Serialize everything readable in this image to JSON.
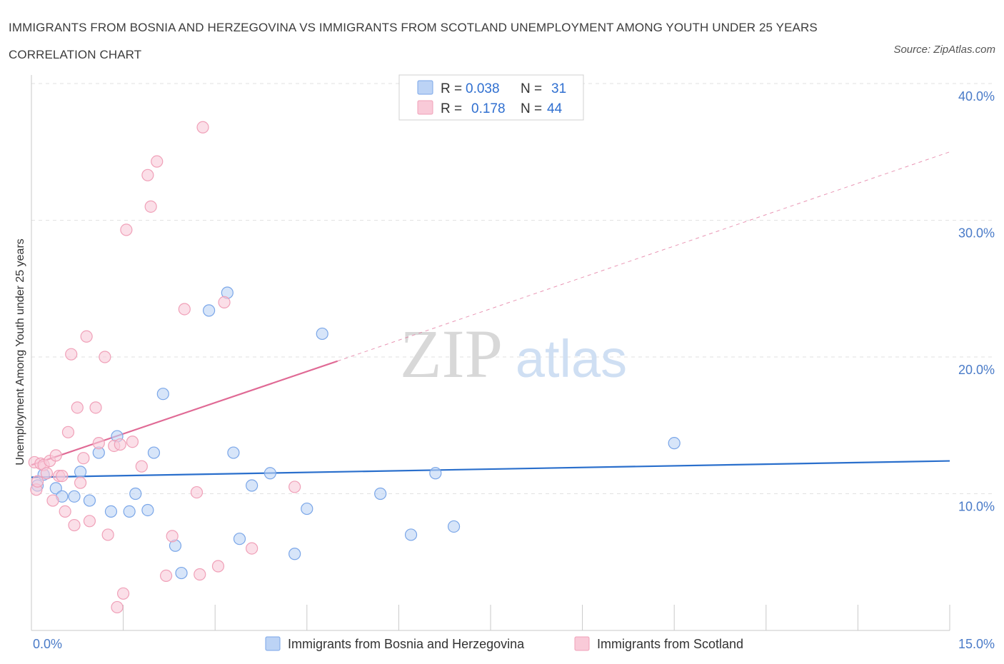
{
  "title": "IMMIGRANTS FROM BOSNIA AND HERZEGOVINA VS IMMIGRANTS FROM SCOTLAND UNEMPLOYMENT AMONG YOUTH UNDER 25 YEARS CORRELATION CHART",
  "source": "Source: ZipAtlas.com",
  "watermark": {
    "zip": "ZIP",
    "atlas": "atlas"
  },
  "chart_data": {
    "type": "scatter",
    "title": "IMMIGRANTS FROM BOSNIA AND HERZEGOVINA VS IMMIGRANTS FROM SCOTLAND UNEMPLOYMENT AMONG YOUTH UNDER 25 YEARS CORRELATION CHART",
    "xlabel": "",
    "ylabel": "Unemployment Among Youth under 25 years",
    "xlim": [
      0,
      15
    ],
    "ylim": [
      0,
      40
    ],
    "x_tick_labels": [
      "0.0%",
      "15.0%"
    ],
    "y_ticks": [
      10,
      20,
      30,
      40
    ],
    "y_tick_labels": [
      "10.0%",
      "20.0%",
      "30.0%",
      "40.0%"
    ],
    "grid": true,
    "legend_position": "top-center",
    "series": [
      {
        "name": "Immigrants from Bosnia and Herzegovina",
        "color": "#7aa6e8",
        "fill": "#bcd3f5",
        "line_color": "#2a6fcc",
        "R": "0.038",
        "N": "31",
        "trend": {
          "x0": 0.0,
          "y0": 11.2,
          "x1": 15.0,
          "y1": 12.4,
          "dashed_extension": false
        },
        "points": [
          [
            0.1,
            10.6
          ],
          [
            0.2,
            11.4
          ],
          [
            0.4,
            10.4
          ],
          [
            0.5,
            9.8
          ],
          [
            0.7,
            9.8
          ],
          [
            0.8,
            11.6
          ],
          [
            0.95,
            9.5
          ],
          [
            1.1,
            13.0
          ],
          [
            1.3,
            8.7
          ],
          [
            1.4,
            14.2
          ],
          [
            1.6,
            8.7
          ],
          [
            1.7,
            10.0
          ],
          [
            1.9,
            8.8
          ],
          [
            2.0,
            13.0
          ],
          [
            2.15,
            17.3
          ],
          [
            2.35,
            6.2
          ],
          [
            2.45,
            4.2
          ],
          [
            2.9,
            23.4
          ],
          [
            3.2,
            24.7
          ],
          [
            3.3,
            13.0
          ],
          [
            3.4,
            6.7
          ],
          [
            3.6,
            10.6
          ],
          [
            3.9,
            11.5
          ],
          [
            4.3,
            5.6
          ],
          [
            4.5,
            8.9
          ],
          [
            4.75,
            21.7
          ],
          [
            5.7,
            10.0
          ],
          [
            6.2,
            7.0
          ],
          [
            6.6,
            11.5
          ],
          [
            6.9,
            7.6
          ],
          [
            10.5,
            13.7
          ]
        ]
      },
      {
        "name": "Immigrants from Scotland",
        "color": "#f0a0b8",
        "fill": "#f9cad8",
        "line_color": "#e06a95",
        "R": "0.178",
        "N": "44",
        "trend": {
          "x0": 0.0,
          "y0": 12.1,
          "x1": 5.0,
          "y1": 19.7,
          "dashed_to_x": 15.0,
          "dashed_to_y": 35.0,
          "dashed_extension": true
        },
        "points": [
          [
            0.05,
            12.3
          ],
          [
            0.08,
            10.3
          ],
          [
            0.1,
            10.9
          ],
          [
            0.15,
            12.2
          ],
          [
            0.2,
            12.1
          ],
          [
            0.25,
            11.5
          ],
          [
            0.3,
            12.4
          ],
          [
            0.35,
            9.5
          ],
          [
            0.4,
            12.8
          ],
          [
            0.45,
            11.3
          ],
          [
            0.5,
            11.3
          ],
          [
            0.55,
            8.7
          ],
          [
            0.6,
            14.5
          ],
          [
            0.65,
            20.2
          ],
          [
            0.7,
            7.7
          ],
          [
            0.75,
            16.3
          ],
          [
            0.8,
            10.8
          ],
          [
            0.85,
            12.6
          ],
          [
            0.9,
            21.5
          ],
          [
            0.95,
            8.0
          ],
          [
            1.05,
            16.3
          ],
          [
            1.1,
            13.7
          ],
          [
            1.2,
            20.0
          ],
          [
            1.25,
            7.0
          ],
          [
            1.35,
            13.5
          ],
          [
            1.4,
            1.7
          ],
          [
            1.45,
            13.6
          ],
          [
            1.5,
            2.7
          ],
          [
            1.55,
            29.3
          ],
          [
            1.65,
            13.8
          ],
          [
            1.8,
            12.0
          ],
          [
            1.9,
            33.3
          ],
          [
            1.95,
            31.0
          ],
          [
            2.05,
            34.3
          ],
          [
            2.2,
            4.0
          ],
          [
            2.3,
            6.9
          ],
          [
            2.5,
            23.5
          ],
          [
            2.7,
            10.1
          ],
          [
            2.75,
            4.1
          ],
          [
            2.8,
            36.8
          ],
          [
            3.05,
            4.7
          ],
          [
            3.15,
            24.0
          ],
          [
            3.6,
            6.0
          ],
          [
            4.3,
            10.5
          ]
        ]
      }
    ]
  }
}
